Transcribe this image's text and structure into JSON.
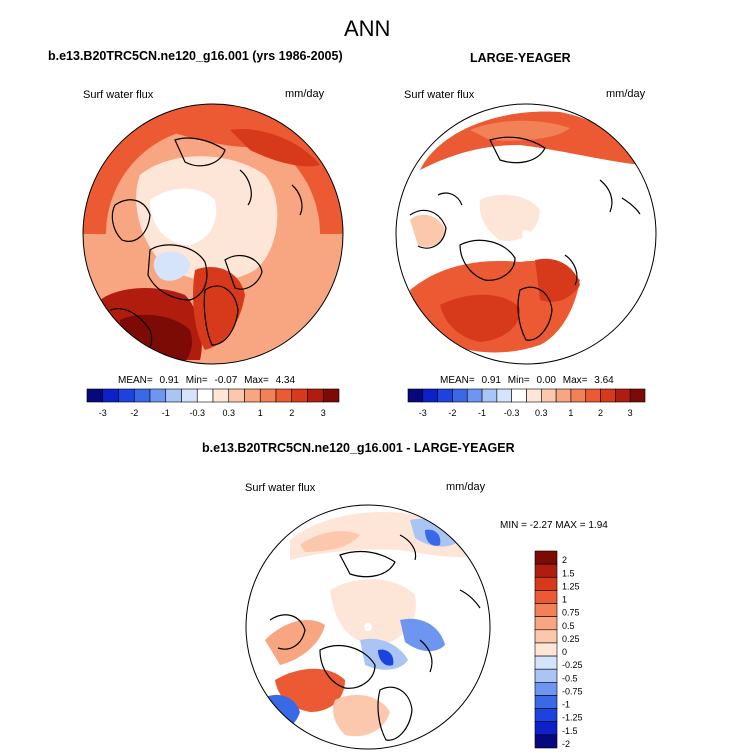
{
  "title": "ANN",
  "chart_data": [
    {
      "type": "heatmap",
      "title": "b.e13.B20TRC5CN.ne120_g16.001 (yrs 1986-2005)",
      "left_label": "Surf water flux",
      "right_label": "mm/day",
      "stats": {
        "mean_label": "MEAN=",
        "mean": "0.91",
        "min_label": "Min=",
        "min": "-0.07",
        "max_label": "Max=",
        "max": "4.34"
      },
      "colorbar_ticks": [
        "-3",
        "-2",
        "-1",
        "-0.3",
        "0.3",
        "1",
        "2",
        "3"
      ]
    },
    {
      "type": "heatmap",
      "title": "LARGE-YEAGER",
      "left_label": "Surf water flux",
      "right_label": "mm/day",
      "stats": {
        "mean_label": "MEAN=",
        "mean": "0.91",
        "min_label": "Min=",
        "min": "0.00",
        "max_label": "Max=",
        "max": "3.64"
      },
      "colorbar_ticks": [
        "-3",
        "-2",
        "-1",
        "-0.3",
        "0.3",
        "1",
        "2",
        "3"
      ]
    },
    {
      "type": "heatmap",
      "title": "b.e13.B20TRC5CN.ne120_g16.001 - LARGE-YEAGER",
      "left_label": "Surf water flux",
      "right_label": "mm/day",
      "stats_text": "MIN = -2.27 MAX = 1.94",
      "colorbar_ticks": [
        "2",
        "1.5",
        "1.25",
        "1",
        "0.75",
        "0.5",
        "0.25",
        "0",
        "-0.25",
        "-0.5",
        "-0.75",
        "-1",
        "-1.25",
        "-1.5",
        "-2"
      ]
    }
  ],
  "colors": {
    "abs_scale": [
      "#08087e",
      "#0d21c9",
      "#1c43e0",
      "#3a69e8",
      "#6e96f0",
      "#aac4f3",
      "#d5e4fa",
      "#ffffff",
      "#fde6d8",
      "#fbc8ae",
      "#f8a582",
      "#f38157",
      "#ec5a33",
      "#d73a1a",
      "#b01d0f",
      "#7c0b06"
    ],
    "diff_scale": [
      "#7c0b06",
      "#b01d0f",
      "#d73a1a",
      "#ec5a33",
      "#f38157",
      "#f8a582",
      "#fbc8ae",
      "#fde6d8",
      "#d5e4fa",
      "#aac4f3",
      "#6e96f0",
      "#3a69e8",
      "#1c43e0",
      "#0d21c9",
      "#08087e"
    ],
    "land": "#ffffff",
    "outline": "#000000"
  }
}
